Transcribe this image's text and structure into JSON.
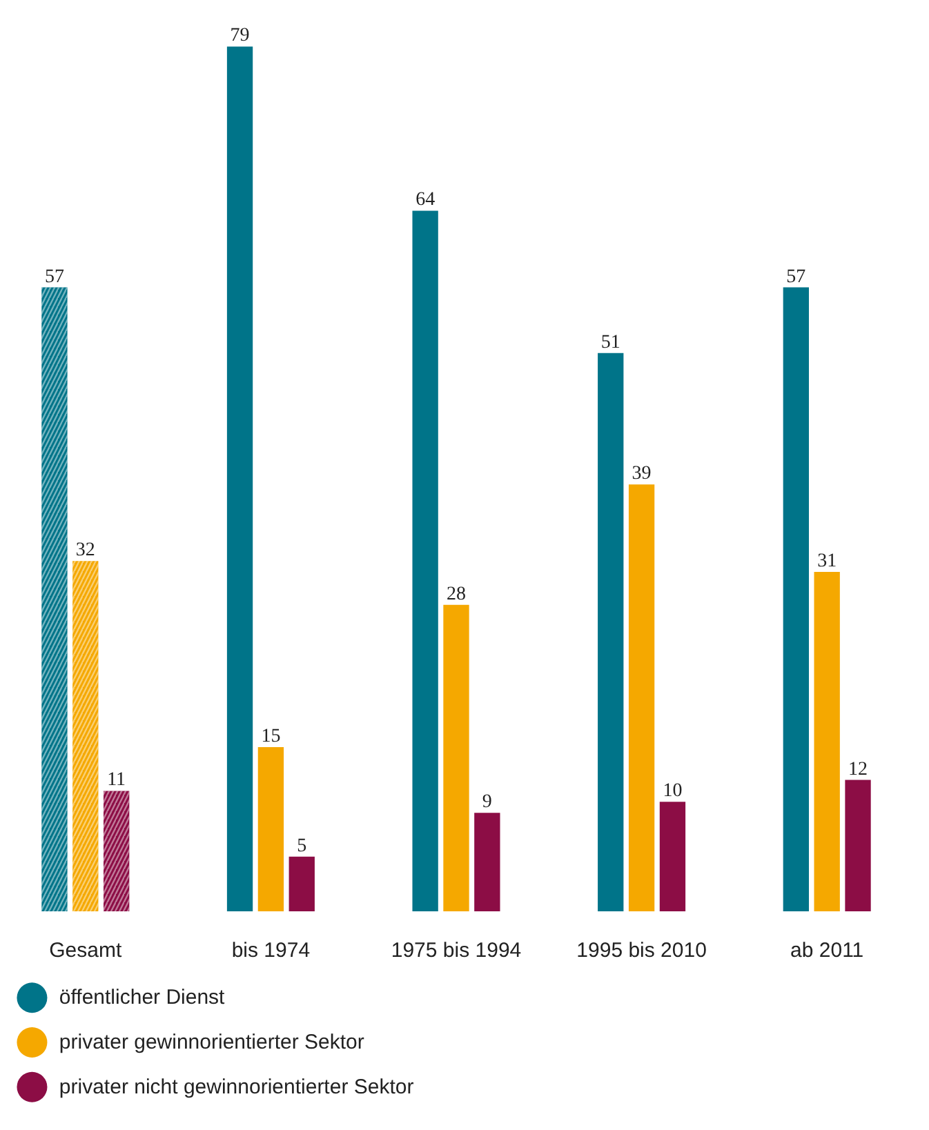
{
  "chart_data": {
    "type": "bar",
    "categories": [
      "Gesamt",
      "bis 1974",
      "1975 bis 1994",
      "1995 bis 2010",
      "ab 2011"
    ],
    "series": [
      {
        "name": "öffentlicher Dienst",
        "color": "#007489",
        "values": [
          57,
          79,
          64,
          51,
          57
        ]
      },
      {
        "name": "privater gewinnorientierter Sektor",
        "color": "#f5a800",
        "values": [
          32,
          15,
          28,
          39,
          31
        ]
      },
      {
        "name": "privater nicht gewinnorientierter Sektor",
        "color": "#8c0d45",
        "values": [
          11,
          5,
          9,
          10,
          12
        ]
      }
    ],
    "data_labels": true,
    "legend": "bottom",
    "grid": false
  }
}
